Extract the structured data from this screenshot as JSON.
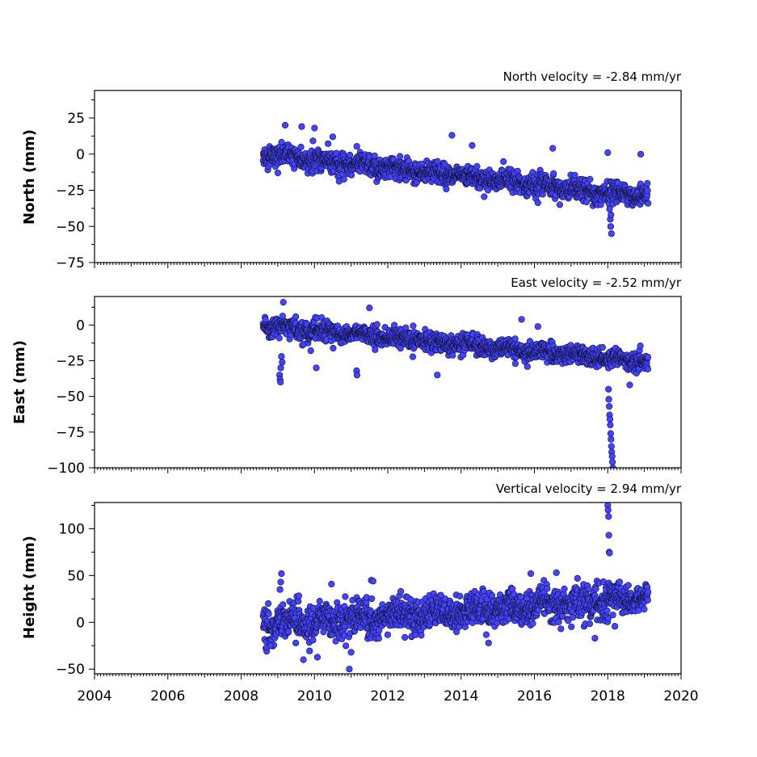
{
  "chart_data": {
    "type": "scatter",
    "x_ticks": [
      2004,
      2006,
      2008,
      2010,
      2012,
      2014,
      2016,
      2018,
      2020
    ],
    "xlim": [
      2004,
      2020
    ],
    "marker_color": "#4444ff",
    "marker_edge": "#111133",
    "panels": [
      {
        "name": "north",
        "title": "North velocity = -2.84 mm/yr",
        "ylabel": "North (mm)",
        "ylim": [
          -75,
          44
        ],
        "y_ticks": [
          25,
          0,
          -25,
          -50,
          -75
        ],
        "y_tick_labels": [
          "25",
          "0",
          "−25",
          "−50",
          "−75"
        ],
        "velocity": -2.84,
        "intercept": 0,
        "t0": 2008.6,
        "t_end": 2019.1,
        "noise": 3.5,
        "outliers": [
          {
            "x": 2009.2,
            "y": 20
          },
          {
            "x": 2009.65,
            "y": 19
          },
          {
            "x": 2010.0,
            "y": 18
          },
          {
            "x": 2010.5,
            "y": 12
          },
          {
            "x": 2013.75,
            "y": 13
          },
          {
            "x": 2014.3,
            "y": 6
          },
          {
            "x": 2016.5,
            "y": 4
          },
          {
            "x": 2018.0,
            "y": 1
          },
          {
            "x": 2018.9,
            "y": 0
          },
          {
            "x": 2018.05,
            "y": -38
          },
          {
            "x": 2018.07,
            "y": -45
          },
          {
            "x": 2018.08,
            "y": -50
          },
          {
            "x": 2018.1,
            "y": -55
          },
          {
            "x": 2018.09,
            "y": -42
          },
          {
            "x": 2009.0,
            "y": -13
          }
        ]
      },
      {
        "name": "east",
        "title": "East velocity = -2.52 mm/yr",
        "ylabel": "East (mm)",
        "ylim": [
          -100,
          20
        ],
        "y_ticks": [
          0,
          -25,
          -50,
          -75,
          -100
        ],
        "y_tick_labels": [
          "0",
          "−25",
          "−50",
          "−75",
          "−100"
        ],
        "velocity": -2.52,
        "intercept": 0,
        "t0": 2008.6,
        "t_end": 2019.1,
        "noise": 3.2,
        "outliers": [
          {
            "x": 2009.15,
            "y": 16
          },
          {
            "x": 2011.5,
            "y": 12
          },
          {
            "x": 2015.65,
            "y": 4
          },
          {
            "x": 2009.05,
            "y": -35
          },
          {
            "x": 2009.06,
            "y": -38
          },
          {
            "x": 2009.07,
            "y": -40
          },
          {
            "x": 2009.08,
            "y": -30
          },
          {
            "x": 2009.1,
            "y": -22
          },
          {
            "x": 2009.12,
            "y": -26
          },
          {
            "x": 2009.9,
            "y": -18
          },
          {
            "x": 2010.05,
            "y": -30
          },
          {
            "x": 2011.15,
            "y": -32
          },
          {
            "x": 2011.16,
            "y": -35
          },
          {
            "x": 2013.35,
            "y": -35
          },
          {
            "x": 2018.6,
            "y": -42
          },
          {
            "x": 2018.02,
            "y": -45
          },
          {
            "x": 2018.03,
            "y": -52
          },
          {
            "x": 2018.04,
            "y": -57
          },
          {
            "x": 2018.05,
            "y": -63
          },
          {
            "x": 2018.06,
            "y": -66
          },
          {
            "x": 2018.07,
            "y": -70
          },
          {
            "x": 2018.08,
            "y": -76
          },
          {
            "x": 2018.09,
            "y": -80
          },
          {
            "x": 2018.1,
            "y": -85
          },
          {
            "x": 2018.11,
            "y": -89
          },
          {
            "x": 2018.12,
            "y": -92
          },
          {
            "x": 2018.13,
            "y": -96
          },
          {
            "x": 2018.14,
            "y": -100
          }
        ]
      },
      {
        "name": "height",
        "title": "Vertical velocity = 2.94 mm/yr",
        "ylabel": "Height (mm)",
        "ylim": [
          -55,
          128
        ],
        "y_ticks": [
          100,
          50,
          0,
          -50
        ],
        "y_tick_labels": [
          "100",
          "50",
          "0",
          "−50"
        ],
        "velocity": 2.94,
        "intercept": -4,
        "t0": 2008.6,
        "t_end": 2019.1,
        "noise": 9,
        "outliers": [
          {
            "x": 2009.1,
            "y": 52
          },
          {
            "x": 2009.08,
            "y": 43
          },
          {
            "x": 2009.06,
            "y": 35
          },
          {
            "x": 2011.55,
            "y": 45
          },
          {
            "x": 2011.6,
            "y": 44
          },
          {
            "x": 2015.9,
            "y": 52
          },
          {
            "x": 2016.6,
            "y": 53
          },
          {
            "x": 2018.0,
            "y": 125
          },
          {
            "x": 2018.01,
            "y": 120
          },
          {
            "x": 2018.02,
            "y": 113
          },
          {
            "x": 2018.03,
            "y": 93
          },
          {
            "x": 2018.04,
            "y": 75
          },
          {
            "x": 2018.05,
            "y": 74
          },
          {
            "x": 2009.7,
            "y": -40
          },
          {
            "x": 2010.95,
            "y": -50
          },
          {
            "x": 2011.0,
            "y": -32
          },
          {
            "x": 2014.75,
            "y": -22
          },
          {
            "x": 2017.65,
            "y": -17
          },
          {
            "x": 2008.8,
            "y": -25
          }
        ]
      }
    ]
  }
}
